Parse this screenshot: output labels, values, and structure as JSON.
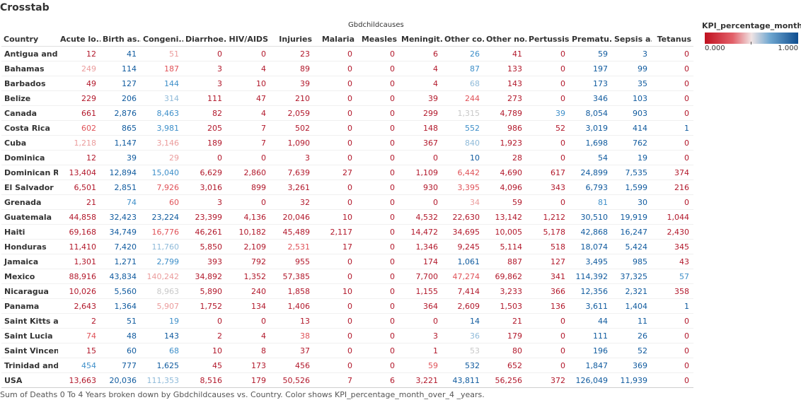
{
  "sheet": {
    "title": "Crosstab",
    "column_group_title": "Gbdchildcauses",
    "caption": "Sum of Deaths 0 To 4 Years broken down by Gbdchildcauses vs. Country.  Color shows KPI_percentage_month_over_4 _years."
  },
  "legend": {
    "title": "KPI_percentage_month..",
    "min_label": "0.000",
    "max_label": "1.000",
    "low_color": "#c0111f",
    "high_color": "#0e4d8f"
  },
  "chart_data": {
    "type": "table",
    "row_header": "Country",
    "columns": [
      "Acute lo..",
      "Birth as..",
      "Congeni..",
      "Diarrhoe..",
      "HIV/AIDS",
      "Injuries",
      "Malaria",
      "Measles",
      "Meningit..",
      "Other co..",
      "Other no..",
      "Pertussis",
      "Prematu..",
      "Sepsis a..",
      "Tetanus"
    ],
    "rows": [
      {
        "country": "Antigua and ..",
        "values": [
          "12",
          "41",
          "51",
          "0",
          "0",
          "23",
          "0",
          "0",
          "6",
          "26",
          "41",
          "0",
          "59",
          "3",
          "0"
        ],
        "colors": [
          "r",
          "b",
          "lr",
          "r",
          "r",
          "r",
          "r",
          "r",
          "r",
          "mb",
          "r",
          "r",
          "b",
          "b",
          "r"
        ]
      },
      {
        "country": "Bahamas",
        "values": [
          "249",
          "114",
          "187",
          "3",
          "4",
          "89",
          "0",
          "0",
          "4",
          "87",
          "133",
          "0",
          "197",
          "99",
          "0"
        ],
        "colors": [
          "lr",
          "b",
          "mr",
          "r",
          "r",
          "r",
          "r",
          "r",
          "r",
          "mb",
          "r",
          "r",
          "b",
          "b",
          "r"
        ]
      },
      {
        "country": "Barbados",
        "values": [
          "49",
          "127",
          "144",
          "3",
          "10",
          "39",
          "0",
          "0",
          "4",
          "68",
          "143",
          "0",
          "173",
          "35",
          "0"
        ],
        "colors": [
          "r",
          "b",
          "mb",
          "r",
          "r",
          "r",
          "r",
          "r",
          "r",
          "lb",
          "r",
          "r",
          "b",
          "b",
          "r"
        ]
      },
      {
        "country": "Belize",
        "values": [
          "229",
          "206",
          "314",
          "111",
          "47",
          "210",
          "0",
          "0",
          "39",
          "244",
          "273",
          "0",
          "346",
          "103",
          "0"
        ],
        "colors": [
          "r",
          "b",
          "lb",
          "r",
          "r",
          "r",
          "r",
          "r",
          "r",
          "mr",
          "r",
          "r",
          "b",
          "b",
          "r"
        ]
      },
      {
        "country": "Canada",
        "values": [
          "661",
          "2,876",
          "8,463",
          "82",
          "4",
          "2,059",
          "0",
          "0",
          "299",
          "1,315",
          "4,789",
          "39",
          "8,054",
          "903",
          "0"
        ],
        "colors": [
          "r",
          "b",
          "mb",
          "r",
          "r",
          "r",
          "r",
          "r",
          "r",
          "n",
          "r",
          "mb",
          "b",
          "b",
          "r"
        ]
      },
      {
        "country": "Costa Rica",
        "values": [
          "602",
          "865",
          "3,981",
          "205",
          "7",
          "502",
          "0",
          "0",
          "148",
          "552",
          "986",
          "52",
          "3,019",
          "414",
          "1"
        ],
        "colors": [
          "mr",
          "b",
          "mb",
          "r",
          "r",
          "r",
          "r",
          "r",
          "r",
          "mb",
          "r",
          "r",
          "b",
          "b",
          "b"
        ]
      },
      {
        "country": "Cuba",
        "values": [
          "1,218",
          "1,147",
          "3,146",
          "189",
          "7",
          "1,090",
          "0",
          "0",
          "367",
          "840",
          "1,923",
          "0",
          "1,698",
          "762",
          "0"
        ],
        "colors": [
          "lr",
          "b",
          "lr",
          "r",
          "r",
          "r",
          "r",
          "r",
          "r",
          "lb",
          "r",
          "r",
          "b",
          "b",
          "r"
        ]
      },
      {
        "country": "Dominica",
        "values": [
          "12",
          "39",
          "29",
          "0",
          "0",
          "3",
          "0",
          "0",
          "0",
          "10",
          "28",
          "0",
          "54",
          "19",
          "0"
        ],
        "colors": [
          "r",
          "b",
          "lr",
          "r",
          "r",
          "r",
          "r",
          "r",
          "r",
          "b",
          "r",
          "r",
          "b",
          "b",
          "r"
        ]
      },
      {
        "country": "Dominican R..",
        "values": [
          "13,404",
          "12,894",
          "15,040",
          "6,629",
          "2,860",
          "7,639",
          "27",
          "0",
          "1,109",
          "6,442",
          "4,690",
          "617",
          "24,899",
          "7,535",
          "374"
        ],
        "colors": [
          "r",
          "b",
          "mb",
          "r",
          "r",
          "r",
          "r",
          "r",
          "r",
          "mr",
          "r",
          "r",
          "b",
          "b",
          "r"
        ]
      },
      {
        "country": "El Salvador",
        "values": [
          "6,501",
          "2,851",
          "7,926",
          "3,016",
          "899",
          "3,261",
          "0",
          "0",
          "930",
          "3,395",
          "4,096",
          "343",
          "6,793",
          "1,599",
          "216"
        ],
        "colors": [
          "r",
          "b",
          "mr",
          "r",
          "r",
          "r",
          "r",
          "r",
          "r",
          "mr",
          "r",
          "r",
          "b",
          "b",
          "r"
        ]
      },
      {
        "country": "Grenada",
        "values": [
          "21",
          "74",
          "60",
          "3",
          "0",
          "32",
          "0",
          "0",
          "0",
          "34",
          "59",
          "0",
          "81",
          "30",
          "0"
        ],
        "colors": [
          "r",
          "mb",
          "mr",
          "r",
          "r",
          "r",
          "r",
          "r",
          "r",
          "lr",
          "r",
          "r",
          "mb",
          "b",
          "r"
        ]
      },
      {
        "country": "Guatemala",
        "values": [
          "44,858",
          "32,423",
          "23,224",
          "23,399",
          "4,136",
          "20,046",
          "10",
          "0",
          "4,532",
          "22,630",
          "13,142",
          "1,212",
          "30,510",
          "19,919",
          "1,044"
        ],
        "colors": [
          "r",
          "b",
          "b",
          "r",
          "r",
          "r",
          "r",
          "r",
          "r",
          "r",
          "r",
          "r",
          "b",
          "b",
          "r"
        ]
      },
      {
        "country": "Haiti",
        "values": [
          "69,168",
          "34,749",
          "16,776",
          "46,261",
          "10,182",
          "45,489",
          "2,117",
          "0",
          "14,472",
          "34,695",
          "10,005",
          "5,178",
          "42,868",
          "16,247",
          "2,430"
        ],
        "colors": [
          "r",
          "b",
          "mr",
          "r",
          "r",
          "r",
          "r",
          "r",
          "r",
          "r",
          "r",
          "r",
          "b",
          "b",
          "r"
        ]
      },
      {
        "country": "Honduras",
        "values": [
          "11,410",
          "7,420",
          "11,760",
          "5,850",
          "2,109",
          "2,531",
          "17",
          "0",
          "1,346",
          "9,245",
          "5,114",
          "518",
          "18,074",
          "5,424",
          "345"
        ],
        "colors": [
          "r",
          "b",
          "lb",
          "r",
          "r",
          "mr",
          "r",
          "r",
          "r",
          "r",
          "r",
          "r",
          "b",
          "b",
          "r"
        ]
      },
      {
        "country": "Jamaica",
        "values": [
          "1,301",
          "1,271",
          "2,799",
          "393",
          "792",
          "955",
          "0",
          "0",
          "174",
          "1,061",
          "887",
          "127",
          "3,495",
          "985",
          "43"
        ],
        "colors": [
          "r",
          "b",
          "mb",
          "r",
          "r",
          "r",
          "r",
          "r",
          "r",
          "b",
          "r",
          "r",
          "b",
          "b",
          "r"
        ]
      },
      {
        "country": "Mexico",
        "values": [
          "88,916",
          "43,834",
          "140,242",
          "34,892",
          "1,352",
          "57,385",
          "0",
          "0",
          "7,700",
          "47,274",
          "69,862",
          "341",
          "114,392",
          "37,325",
          "57"
        ],
        "colors": [
          "r",
          "b",
          "lr",
          "r",
          "r",
          "r",
          "r",
          "r",
          "r",
          "mr",
          "r",
          "r",
          "b",
          "b",
          "mb"
        ]
      },
      {
        "country": "Nicaragua",
        "values": [
          "10,026",
          "5,560",
          "8,963",
          "5,890",
          "240",
          "1,858",
          "10",
          "0",
          "1,155",
          "7,414",
          "3,233",
          "366",
          "12,356",
          "2,321",
          "358"
        ],
        "colors": [
          "r",
          "b",
          "n",
          "r",
          "r",
          "r",
          "r",
          "r",
          "r",
          "r",
          "r",
          "r",
          "b",
          "b",
          "r"
        ]
      },
      {
        "country": "Panama",
        "values": [
          "2,643",
          "1,364",
          "5,907",
          "1,752",
          "134",
          "1,406",
          "0",
          "0",
          "364",
          "2,609",
          "1,503",
          "136",
          "3,611",
          "1,404",
          "1"
        ],
        "colors": [
          "r",
          "b",
          "lr",
          "r",
          "r",
          "r",
          "r",
          "r",
          "r",
          "r",
          "r",
          "r",
          "b",
          "b",
          "b"
        ]
      },
      {
        "country": "Saint Kitts a..",
        "values": [
          "2",
          "51",
          "19",
          "0",
          "0",
          "13",
          "0",
          "0",
          "0",
          "14",
          "21",
          "0",
          "44",
          "11",
          "0"
        ],
        "colors": [
          "r",
          "b",
          "mb",
          "r",
          "r",
          "r",
          "r",
          "r",
          "r",
          "b",
          "r",
          "r",
          "b",
          "b",
          "r"
        ]
      },
      {
        "country": "Saint Lucia",
        "values": [
          "74",
          "48",
          "143",
          "2",
          "4",
          "38",
          "0",
          "0",
          "3",
          "36",
          "179",
          "0",
          "111",
          "26",
          "0"
        ],
        "colors": [
          "mr",
          "b",
          "b",
          "r",
          "r",
          "mr",
          "r",
          "r",
          "r",
          "lb",
          "r",
          "r",
          "b",
          "b",
          "r"
        ]
      },
      {
        "country": "Saint Vincen..",
        "values": [
          "15",
          "60",
          "68",
          "10",
          "8",
          "37",
          "0",
          "0",
          "1",
          "53",
          "80",
          "0",
          "196",
          "52",
          "0"
        ],
        "colors": [
          "r",
          "b",
          "mb",
          "r",
          "r",
          "r",
          "r",
          "r",
          "r",
          "n",
          "r",
          "r",
          "b",
          "b",
          "r"
        ]
      },
      {
        "country": "Trinidad and..",
        "values": [
          "454",
          "777",
          "1,625",
          "45",
          "173",
          "456",
          "0",
          "0",
          "59",
          "532",
          "652",
          "0",
          "1,847",
          "369",
          "0"
        ],
        "colors": [
          "mb",
          "b",
          "b",
          "r",
          "r",
          "r",
          "r",
          "r",
          "mr",
          "b",
          "r",
          "r",
          "b",
          "b",
          "r"
        ]
      },
      {
        "country": "USA",
        "values": [
          "13,663",
          "20,036",
          "111,353",
          "8,516",
          "179",
          "50,526",
          "7",
          "6",
          "3,221",
          "43,811",
          "56,256",
          "372",
          "126,049",
          "11,939",
          "0"
        ],
        "colors": [
          "r",
          "b",
          "lb",
          "r",
          "r",
          "r",
          "r",
          "r",
          "r",
          "b",
          "r",
          "r",
          "b",
          "b",
          "r"
        ]
      }
    ]
  },
  "palette": {
    "r": "#b2182b",
    "mr": "#e05258",
    "lr": "#eb9c9c",
    "n": "#c8c8c8",
    "lb": "#8fbad9",
    "mb": "#3e8fc9",
    "b": "#0f5a9e"
  }
}
